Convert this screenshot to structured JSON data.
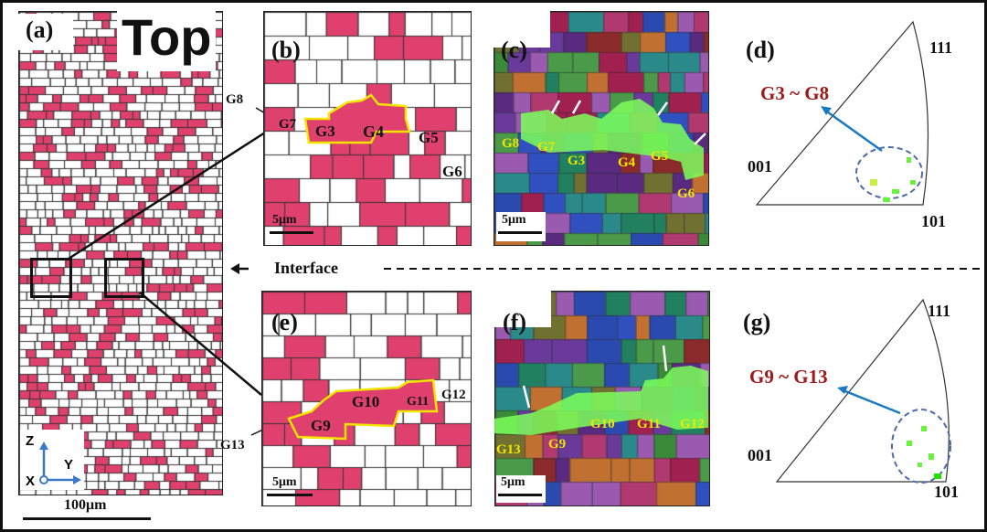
{
  "panels": {
    "a": {
      "label": "(a)",
      "title": "Top",
      "scale": "100μm",
      "axes": {
        "z": "Z",
        "y": "Y",
        "x": "X"
      }
    },
    "b": {
      "label": "(b)",
      "scale": "5μm",
      "grains": [
        "G8",
        "G7",
        "G3",
        "G4",
        "G5",
        "G6"
      ]
    },
    "c": {
      "label": "(c)",
      "scale": "5μm",
      "grains": [
        "G8",
        "G7",
        "G3",
        "G4",
        "G5",
        "G6"
      ]
    },
    "d": {
      "label": "(d)",
      "range": "G3 ~ G8",
      "v111": "111",
      "v001": "001",
      "v101": "101"
    },
    "e": {
      "label": "(e)",
      "scale": "5μm",
      "grains": [
        "G13",
        "G9",
        "G10",
        "G11",
        "G12"
      ]
    },
    "f": {
      "label": "(f)",
      "scale": "5μm",
      "grains": [
        "G13",
        "G9",
        "G10",
        "G11",
        "G12"
      ]
    },
    "g": {
      "label": "(g)",
      "range": "G9 ~ G13",
      "v111": "111",
      "v001": "001",
      "v101": "101"
    }
  },
  "interface": "Interface",
  "colors": {
    "pink": "#e0406e",
    "highlight": "#f2e600",
    "ipf_red": "#a01818",
    "arrow_blue": "#1a7ac0"
  }
}
